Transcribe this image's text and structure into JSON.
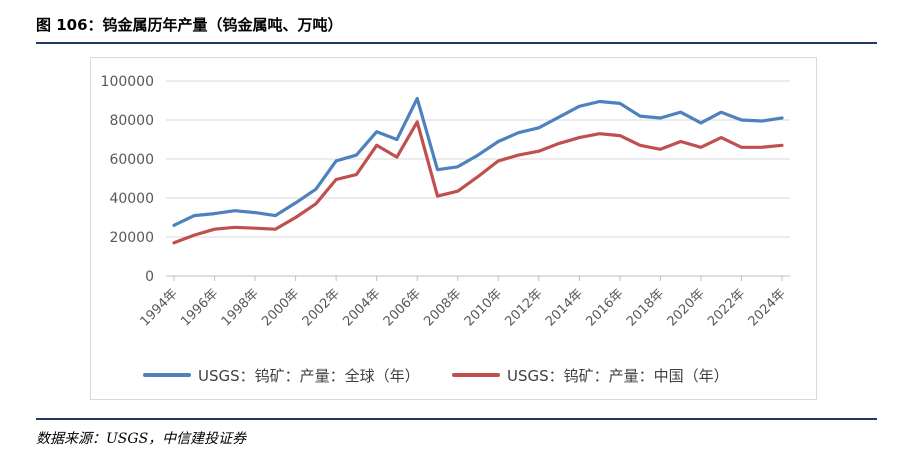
{
  "figure": {
    "title": "图 106：钨金属历年产量（钨金属吨、万吨）",
    "source": "数据来源：USGS，中信建投证券"
  },
  "chart_data": {
    "type": "line",
    "title": "",
    "xlabel": "",
    "ylabel": "",
    "ylim": [
      0,
      100000
    ],
    "yticks": [
      0,
      20000,
      40000,
      60000,
      80000,
      100000
    ],
    "x": [
      "1994年",
      "1995年",
      "1996年",
      "1997年",
      "1998年",
      "1999年",
      "2000年",
      "2001年",
      "2002年",
      "2003年",
      "2004年",
      "2005年",
      "2006年",
      "2007年",
      "2008年",
      "2009年",
      "2010年",
      "2011年",
      "2012年",
      "2013年",
      "2014年",
      "2015年",
      "2016年",
      "2017年",
      "2018年",
      "2019年",
      "2020年",
      "2021年",
      "2022年",
      "2023年",
      "2024年"
    ],
    "xtick_labels": [
      "1994年",
      "1996年",
      "1998年",
      "2000年",
      "2002年",
      "2004年",
      "2006年",
      "2008年",
      "2010年",
      "2012年",
      "2014年",
      "2016年",
      "2018年",
      "2020年",
      "2022年",
      "2024年"
    ],
    "grid": true,
    "legend_position": "bottom",
    "series": [
      {
        "name": "USGS：钨矿：产量：全球（年）",
        "color": "#4e81bd",
        "values": [
          26000,
          31000,
          32000,
          33500,
          32500,
          31000,
          37500,
          44500,
          59000,
          62000,
          74000,
          70000,
          91000,
          54500,
          56000,
          62000,
          69000,
          73500,
          76000,
          81500,
          87000,
          89500,
          88500,
          82000,
          81000,
          84000,
          78500,
          84000,
          80000,
          79500,
          81000
        ]
      },
      {
        "name": "USGS：钨矿：产量：中国（年）",
        "color": "#c0504d",
        "values": [
          17000,
          21000,
          24000,
          25000,
          24500,
          24000,
          30000,
          37000,
          49500,
          52000,
          67000,
          61000,
          79000,
          41000,
          43500,
          51000,
          59000,
          62000,
          64000,
          68000,
          71000,
          73000,
          72000,
          67000,
          65000,
          69000,
          66000,
          71000,
          66000,
          66000,
          67000
        ]
      }
    ]
  }
}
